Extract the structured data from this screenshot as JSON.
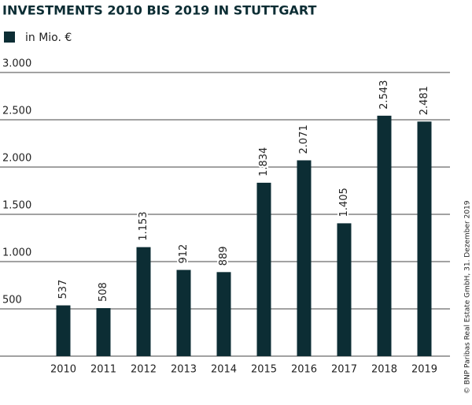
{
  "chart_data": {
    "type": "bar",
    "title": "INVESTMENTS 2010 BIS 2019 IN STUTTGART",
    "categories": [
      "2010",
      "2011",
      "2012",
      "2013",
      "2014",
      "2015",
      "2016",
      "2017",
      "2018",
      "2019"
    ],
    "series": [
      {
        "name": "in Mio. €",
        "color": "#0c2d34",
        "values": [
          537,
          508,
          1153,
          912,
          889,
          1834,
          2071,
          1405,
          2543,
          2481
        ],
        "value_labels": [
          "537",
          "508",
          "1.153",
          "912",
          "889",
          "1.834",
          "2.071",
          "1.405",
          "2.543",
          "2.481"
        ]
      }
    ],
    "ylim": [
      0,
      3000
    ],
    "yticks": [
      500,
      {
        "value": 1000,
        "label": "1.000"
      },
      {
        "value": 1500,
        "label": "1.500"
      },
      {
        "value": 2000,
        "label": "2.000"
      },
      {
        "value": 2500,
        "label": "2.500"
      },
      {
        "value": 3000,
        "label": "3.000"
      }
    ],
    "grid": true,
    "source": "© BNP Paribas Real Estate GmbH, 31. Dezember 2019"
  }
}
